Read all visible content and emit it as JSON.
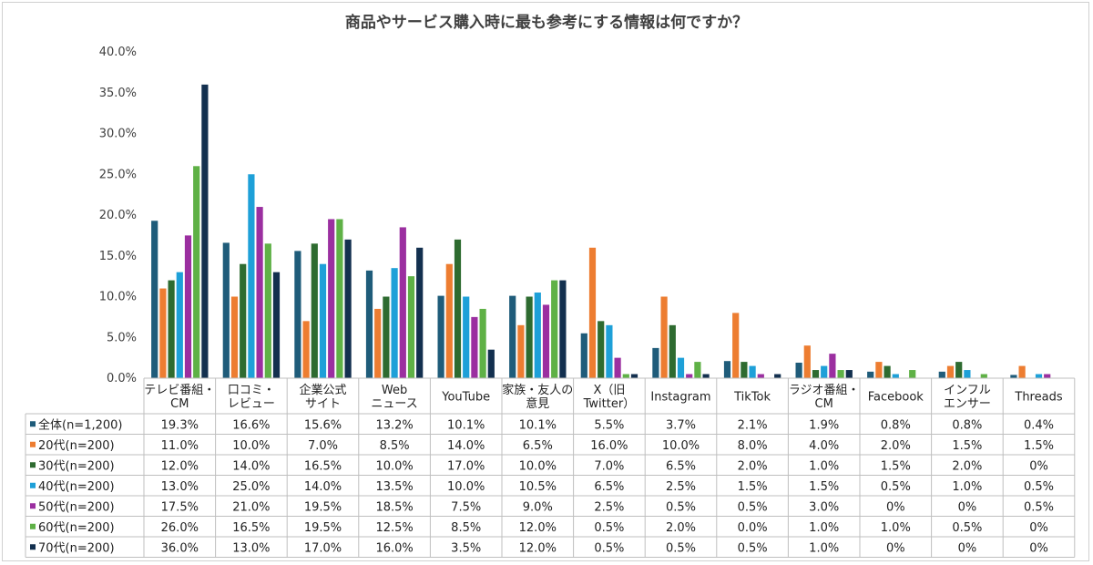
{
  "chart_data": {
    "type": "bar",
    "title": "商品やサービス購入時に最も参考にする情報は何ですか？",
    "categories": [
      [
        "テレビ番組・",
        "CM"
      ],
      [
        "口コミ・",
        "レビュー"
      ],
      [
        "企業公式",
        "サイト"
      ],
      [
        "Web",
        "ニュース"
      ],
      [
        "YouTube"
      ],
      [
        "家族・友人の",
        "意見"
      ],
      [
        "X（旧",
        "Twitter）"
      ],
      [
        "Instagram"
      ],
      [
        "TikTok"
      ],
      [
        "ラジオ番組・",
        "CM"
      ],
      [
        "Facebook"
      ],
      [
        "インフル",
        "エンサー"
      ],
      [
        "Threads"
      ]
    ],
    "ylim": [
      0,
      40
    ],
    "yticks": [
      "0.0%",
      "5.0%",
      "10.0%",
      "15.0%",
      "20.0%",
      "25.0%",
      "30.0%",
      "35.0%",
      "40.0%"
    ],
    "grid": false,
    "series": [
      {
        "name": "全体(n=1,200)",
        "color": "#1f5c7a",
        "values": [
          19.3,
          16.6,
          15.6,
          13.2,
          10.1,
          10.1,
          5.5,
          3.7,
          2.1,
          1.9,
          0.8,
          0.8,
          0.4
        ],
        "labels": [
          "19.3%",
          "16.6%",
          "15.6%",
          "13.2%",
          "10.1%",
          "10.1%",
          "5.5%",
          "3.7%",
          "2.1%",
          "1.9%",
          "0.8%",
          "0.8%",
          "0.4%"
        ]
      },
      {
        "name": "20代(n=200)",
        "color": "#ed7d31",
        "values": [
          11.0,
          10.0,
          7.0,
          8.5,
          14.0,
          6.5,
          16.0,
          10.0,
          8.0,
          4.0,
          2.0,
          1.5,
          1.5
        ],
        "labels": [
          "11.0%",
          "10.0%",
          "7.0%",
          "8.5%",
          "14.0%",
          "6.5%",
          "16.0%",
          "10.0%",
          "8.0%",
          "4.0%",
          "2.0%",
          "1.5%",
          "1.5%"
        ]
      },
      {
        "name": "30代(n=200)",
        "color": "#2e6b30",
        "values": [
          12.0,
          14.0,
          16.5,
          10.0,
          17.0,
          10.0,
          7.0,
          6.5,
          2.0,
          1.0,
          1.5,
          2.0,
          0
        ],
        "labels": [
          "12.0%",
          "14.0%",
          "16.5%",
          "10.0%",
          "17.0%",
          "10.0%",
          "7.0%",
          "6.5%",
          "2.0%",
          "1.0%",
          "1.5%",
          "2.0%",
          "0%"
        ]
      },
      {
        "name": "40代(n=200)",
        "color": "#1ea0d8",
        "values": [
          13.0,
          25.0,
          14.0,
          13.5,
          10.0,
          10.5,
          6.5,
          2.5,
          1.5,
          1.5,
          0.5,
          1.0,
          0.5
        ],
        "labels": [
          "13.0%",
          "25.0%",
          "14.0%",
          "13.5%",
          "10.0%",
          "10.5%",
          "6.5%",
          "2.5%",
          "1.5%",
          "1.5%",
          "0.5%",
          "1.0%",
          "0.5%"
        ]
      },
      {
        "name": "50代(n=200)",
        "color": "#9b2fa0",
        "values": [
          17.5,
          21.0,
          19.5,
          18.5,
          7.5,
          9.0,
          2.5,
          0.5,
          0.5,
          3.0,
          0,
          0,
          0.5
        ],
        "labels": [
          "17.5%",
          "21.0%",
          "19.5%",
          "18.5%",
          "7.5%",
          "9.0%",
          "2.5%",
          "0.5%",
          "0.5%",
          "3.0%",
          "0%",
          "0%",
          "0.5%"
        ]
      },
      {
        "name": "60代(n=200)",
        "color": "#5fb146",
        "values": [
          26.0,
          16.5,
          19.5,
          12.5,
          8.5,
          12.0,
          0.5,
          2.0,
          0.0,
          1.0,
          1.0,
          0.5,
          0
        ],
        "labels": [
          "26.0%",
          "16.5%",
          "19.5%",
          "12.5%",
          "8.5%",
          "12.0%",
          "0.5%",
          "2.0%",
          "0.0%",
          "1.0%",
          "1.0%",
          "0.5%",
          "0%"
        ]
      },
      {
        "name": "70代(n=200)",
        "color": "#13304f",
        "values": [
          36.0,
          13.0,
          17.0,
          16.0,
          3.5,
          12.0,
          0.5,
          0.5,
          0.5,
          1.0,
          0,
          0,
          0
        ],
        "labels": [
          "36.0%",
          "13.0%",
          "17.0%",
          "16.0%",
          "3.5%",
          "12.0%",
          "0.5%",
          "0.5%",
          "0.5%",
          "1.0%",
          "0%",
          "0%",
          "0%"
        ]
      }
    ]
  }
}
